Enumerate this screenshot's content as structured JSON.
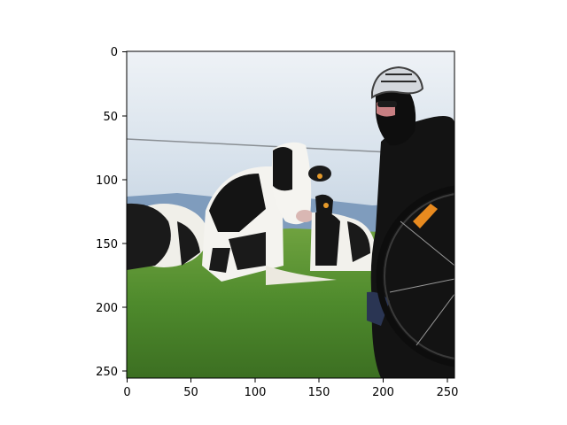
{
  "figure": {
    "x_ticks": [
      "0",
      "50",
      "100",
      "150",
      "200",
      "250"
    ],
    "y_ticks": [
      "0",
      "50",
      "100",
      "150",
      "200",
      "250"
    ]
  },
  "scene": {
    "description_icons": [
      "cow-icon",
      "cyclist-icon",
      "bicycle-wheel-icon"
    ],
    "colors": {
      "sky": "#dfe8f0",
      "grass": "#4f8a2e",
      "cow_black": "#1a1a1a",
      "cow_white": "#f2f2f0",
      "jacket": "#151515",
      "helmet": "#cfd3d8",
      "axes": "#000000"
    }
  }
}
